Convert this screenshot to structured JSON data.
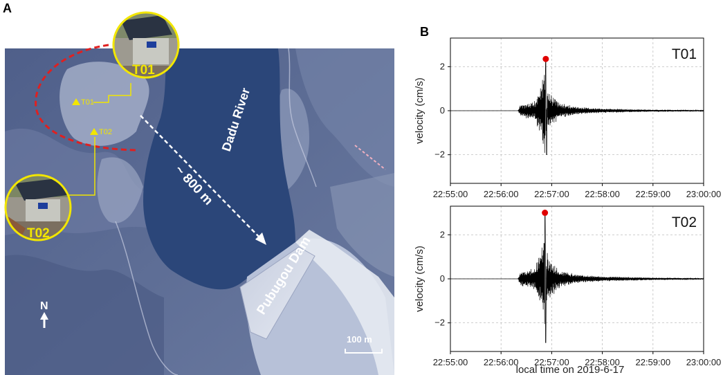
{
  "panels": {
    "a_label": "A",
    "b_label": "B"
  },
  "map": {
    "river_label": "Dadu River",
    "distance_label": "~ 800 m",
    "dam_label": "Pubugou Dam",
    "north_label": "N",
    "scale_label": "100 m",
    "station_markers": [
      "T01",
      "T02"
    ],
    "photo_labels": [
      "T01",
      "T02"
    ],
    "colors": {
      "water": "#2b4679",
      "terrain": "#5a6b92",
      "dashed_outline": "#e02020",
      "station": "#f2e600"
    }
  },
  "chart_data": [
    {
      "type": "line",
      "title": "T01",
      "xlabel": "",
      "ylabel": "velocity (cm/s)",
      "x_ticks": [
        "22:55:00",
        "22:56:00",
        "22:57:00",
        "22:58:00",
        "22:59:00",
        "23:00:00"
      ],
      "xlim": [
        "22:55:00",
        "23:00:00"
      ],
      "y_ticks": [
        -2,
        0,
        2
      ],
      "ylim": [
        -3.3,
        3.3
      ],
      "grid": true,
      "series": [
        {
          "color": "#000000",
          "description_envelope": [
            [
              "22:55:00",
              0.0
            ],
            [
              "22:56:20",
              0.0
            ],
            [
              "22:56:23",
              0.3
            ],
            [
              "22:56:30",
              0.35
            ],
            [
              "22:56:40",
              0.45
            ],
            [
              "22:56:48",
              1.3
            ],
            [
              "22:56:52",
              2.3
            ],
            [
              "22:56:54",
              1.2
            ],
            [
              "22:57:00",
              0.7
            ],
            [
              "22:57:10",
              0.35
            ],
            [
              "22:57:30",
              0.18
            ],
            [
              "22:58:00",
              0.1
            ],
            [
              "22:59:00",
              0.05
            ],
            [
              "23:00:00",
              0.03
            ]
          ],
          "min_value": -2.0
        }
      ],
      "peak": {
        "time": "22:56:53",
        "value": 2.35,
        "color": "#e00000"
      }
    },
    {
      "type": "line",
      "title": "T02",
      "xlabel": "local time on 2019-6-17",
      "ylabel": "velocity (cm/s)",
      "x_ticks": [
        "22:55:00",
        "22:56:00",
        "22:57:00",
        "22:58:00",
        "22:59:00",
        "23:00:00"
      ],
      "xlim": [
        "22:55:00",
        "23:00:00"
      ],
      "y_ticks": [
        -2,
        0,
        2
      ],
      "ylim": [
        -3.3,
        3.3
      ],
      "grid": true,
      "series": [
        {
          "color": "#000000",
          "description_envelope": [
            [
              "22:55:00",
              0.0
            ],
            [
              "22:56:20",
              0.0
            ],
            [
              "22:56:23",
              0.35
            ],
            [
              "22:56:30",
              0.4
            ],
            [
              "22:56:40",
              0.5
            ],
            [
              "22:56:48",
              1.5
            ],
            [
              "22:56:52",
              2.6
            ],
            [
              "22:56:54",
              1.3
            ],
            [
              "22:57:00",
              0.8
            ],
            [
              "22:57:10",
              0.4
            ],
            [
              "22:57:30",
              0.2
            ],
            [
              "22:58:00",
              0.12
            ],
            [
              "22:59:00",
              0.06
            ],
            [
              "23:00:00",
              0.03
            ]
          ],
          "min_value": -2.9
        }
      ],
      "peak": {
        "time": "22:56:52",
        "value": 3.0,
        "color": "#e00000"
      }
    }
  ]
}
